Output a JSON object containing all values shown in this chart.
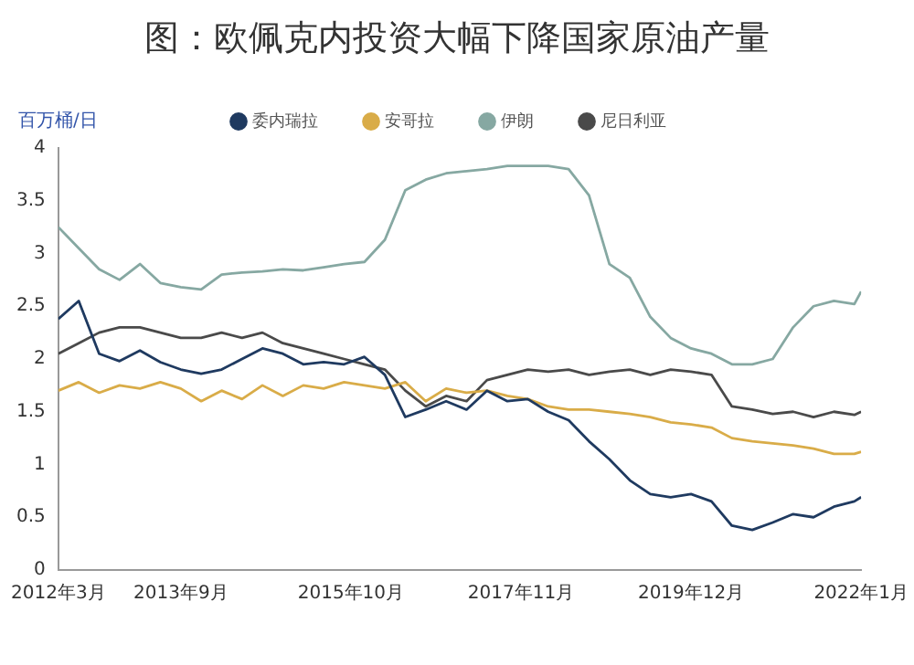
{
  "chart_data": {
    "type": "line",
    "title": "图：欧佩克内投资大幅下降国家原油产量",
    "ylabel": "百万桶/日",
    "x": [
      "2012-03",
      "2012-06",
      "2012-09",
      "2012-12",
      "2013-03",
      "2013-06",
      "2013-09",
      "2013-12",
      "2014-03",
      "2014-06",
      "2014-09",
      "2014-12",
      "2015-03",
      "2015-06",
      "2015-09",
      "2015-12",
      "2016-03",
      "2016-06",
      "2016-09",
      "2016-12",
      "2017-03",
      "2017-06",
      "2017-09",
      "2017-12",
      "2018-03",
      "2018-06",
      "2018-09",
      "2018-12",
      "2019-03",
      "2019-06",
      "2019-09",
      "2019-12",
      "2020-03",
      "2020-06",
      "2020-09",
      "2020-12",
      "2021-03",
      "2021-06",
      "2021-09",
      "2021-12",
      "2022-01"
    ],
    "series": [
      {
        "name": "委内瑞拉",
        "color": "#1f3a60",
        "values": [
          2.38,
          2.55,
          2.05,
          1.98,
          2.08,
          1.97,
          1.9,
          1.86,
          1.9,
          2.0,
          2.1,
          2.05,
          1.95,
          1.97,
          1.95,
          2.02,
          1.85,
          1.45,
          1.52,
          1.6,
          1.52,
          1.7,
          1.6,
          1.62,
          1.5,
          1.42,
          1.22,
          1.05,
          0.85,
          0.72,
          0.69,
          0.72,
          0.65,
          0.42,
          0.38,
          0.45,
          0.53,
          0.5,
          0.6,
          0.65,
          0.69
        ]
      },
      {
        "name": "安哥拉",
        "color": "#d9ac48",
        "values": [
          1.7,
          1.78,
          1.68,
          1.75,
          1.72,
          1.78,
          1.72,
          1.6,
          1.7,
          1.62,
          1.75,
          1.65,
          1.75,
          1.72,
          1.78,
          1.75,
          1.72,
          1.78,
          1.6,
          1.72,
          1.68,
          1.7,
          1.65,
          1.62,
          1.55,
          1.52,
          1.52,
          1.5,
          1.48,
          1.45,
          1.4,
          1.38,
          1.35,
          1.25,
          1.22,
          1.2,
          1.18,
          1.15,
          1.1,
          1.1,
          1.12
        ]
      },
      {
        "name": "伊朗",
        "color": "#86a8a2",
        "values": [
          3.25,
          3.05,
          2.85,
          2.75,
          2.9,
          2.72,
          2.68,
          2.66,
          2.8,
          2.82,
          2.83,
          2.85,
          2.84,
          2.87,
          2.9,
          2.92,
          3.13,
          3.6,
          3.7,
          3.76,
          3.78,
          3.8,
          3.83,
          3.83,
          3.83,
          3.8,
          3.55,
          2.9,
          2.77,
          2.4,
          2.2,
          2.1,
          2.05,
          1.95,
          1.95,
          2.0,
          2.3,
          2.5,
          2.55,
          2.52,
          2.64
        ]
      },
      {
        "name": "尼日利亚",
        "color": "#4a4a4a",
        "values": [
          2.05,
          2.15,
          2.25,
          2.3,
          2.3,
          2.25,
          2.2,
          2.2,
          2.25,
          2.2,
          2.25,
          2.15,
          2.1,
          2.05,
          2.0,
          1.95,
          1.9,
          1.7,
          1.55,
          1.65,
          1.6,
          1.8,
          1.85,
          1.9,
          1.88,
          1.9,
          1.85,
          1.88,
          1.9,
          1.85,
          1.9,
          1.88,
          1.85,
          1.55,
          1.52,
          1.48,
          1.5,
          1.45,
          1.5,
          1.47,
          1.5
        ]
      }
    ],
    "xlim": [
      "2012-03",
      "2022-01"
    ],
    "xticks": [
      {
        "value": "2012-03",
        "label": "2012年3月"
      },
      {
        "value": "2013-09",
        "label": "2013年9月"
      },
      {
        "value": "2015-10",
        "label": "2015年10月"
      },
      {
        "value": "2017-11",
        "label": "2017年11月"
      },
      {
        "value": "2019-12",
        "label": "2019年12月"
      },
      {
        "value": "2022-01",
        "label": "2022年1月"
      }
    ],
    "ylim": [
      0,
      4
    ],
    "yticks": [
      0,
      0.5,
      1,
      1.5,
      2,
      2.5,
      3,
      3.5,
      4
    ],
    "grid": false,
    "legend": "top",
    "marker": "none",
    "line_style": "solid"
  }
}
